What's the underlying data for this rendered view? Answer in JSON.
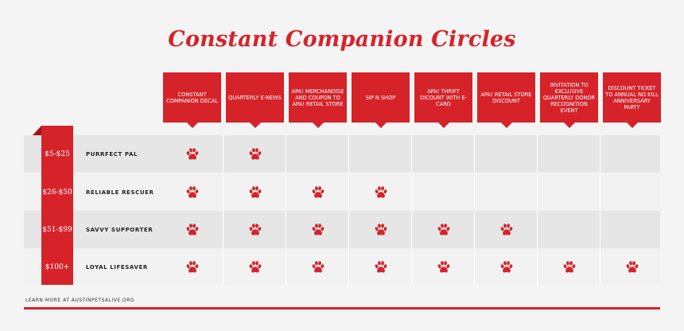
{
  "title": "Constant Companion Circles",
  "benefits": [
    "CONSTANT COMPANION DECAL",
    "QUARTERLY E-NEWS",
    "APA! MERCHANDISE AND COUPON TO APA! RETAIL STORE",
    "SIP N SHOP",
    "APA! THRIFT DICOUNT WITH E-CARD",
    "APA! RETAIL STORE DISCOUNT",
    "INVITATION TO EXCLUSIVE QUARTERLY DONOR RECOGNITION EVENT",
    "DISCOUNT TICKET TO ANNUAL NO KILL ANNIVERSARY PARTY"
  ],
  "tiers": [
    {
      "price": "$5-$25",
      "name": "PURRFECT PAL",
      "benefit_count": 2
    },
    {
      "price": "$26-$50",
      "name": "RELIABLE RESCUER",
      "benefit_count": 4
    },
    {
      "price": "$51-$99",
      "name": "SAVVY SUPPORTER",
      "benefit_count": 6
    },
    {
      "price": "$100+",
      "name": "LOYAL LIFESAVER",
      "benefit_count": 8
    }
  ],
  "icons": {
    "benefit_marker": "paw-print-icon"
  },
  "colors": {
    "accent": "#d6232a",
    "row_shaded": "#e6e6e7",
    "row_light": "#f2f2f2",
    "background": "#f4f4f4"
  },
  "footer": {
    "text": "LEARN MORE AT AUSTINPETSALIVE.ORG"
  }
}
